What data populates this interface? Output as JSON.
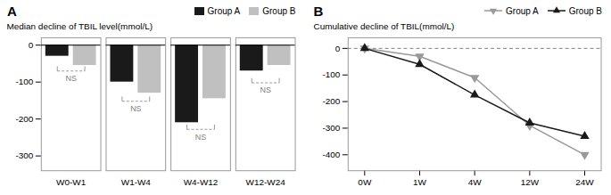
{
  "chart_data": [
    {
      "type": "bar",
      "title": "A",
      "categories": [
        "W0-W1",
        "W1-W4",
        "W4-W12",
        "W12-W24"
      ],
      "series": [
        {
          "name": "Group A",
          "color": "#1a1a1a",
          "values": [
            -30,
            -100,
            -210,
            -70
          ]
        },
        {
          "name": "Group B",
          "color": "#c0c0c0",
          "values": [
            -55,
            -130,
            -145,
            -55
          ]
        }
      ],
      "ylabel": "Median decline of TBIL level(mmol/L)",
      "ylim": [
        -340,
        20
      ],
      "yticks": [
        0,
        -100,
        -200,
        -300
      ],
      "legend": "upper right",
      "reference_lines": [
        {
          "y": 0
        }
      ],
      "annotations": [
        {
          "text": "NS",
          "category": "W0-W1",
          "y": -70,
          "text_y": -82
        },
        {
          "text": "NS",
          "category": "W1-W4",
          "y": -152,
          "text_y": -164
        },
        {
          "text": "NS",
          "category": "W4-W12",
          "y": -228,
          "text_y": -240
        },
        {
          "text": "NS",
          "category": "W12-W24",
          "y": -102,
          "text_y": -114
        }
      ]
    },
    {
      "type": "line",
      "title": "B",
      "x": [
        0,
        1,
        2,
        3,
        4
      ],
      "xlim": [
        -0.3,
        4.3
      ],
      "xticks": [
        {
          "value": 0,
          "label": "0W"
        },
        {
          "value": 1,
          "label": "1W"
        },
        {
          "value": 2,
          "label": "4W"
        },
        {
          "value": 3,
          "label": "12W"
        },
        {
          "value": 4,
          "label": "24W"
        }
      ],
      "series": [
        {
          "name": "Group A",
          "color": "#999999",
          "marker": "triangle_down",
          "values": [
            0,
            -30,
            -110,
            -290,
            -400
          ]
        },
        {
          "name": "Group B",
          "color": "#1a1a1a",
          "marker": "triangle_up",
          "values": [
            0,
            -60,
            -175,
            -280,
            -330
          ]
        }
      ],
      "ylabel": "Cumulative decline of TBIL(mmol/L)",
      "ylim": [
        -460,
        40
      ],
      "yticks": [
        0,
        -100,
        -200,
        -300,
        -400
      ],
      "legend": "upper right",
      "reference_lines": [
        {
          "y": 0,
          "line_style": "dashed"
        }
      ]
    }
  ]
}
